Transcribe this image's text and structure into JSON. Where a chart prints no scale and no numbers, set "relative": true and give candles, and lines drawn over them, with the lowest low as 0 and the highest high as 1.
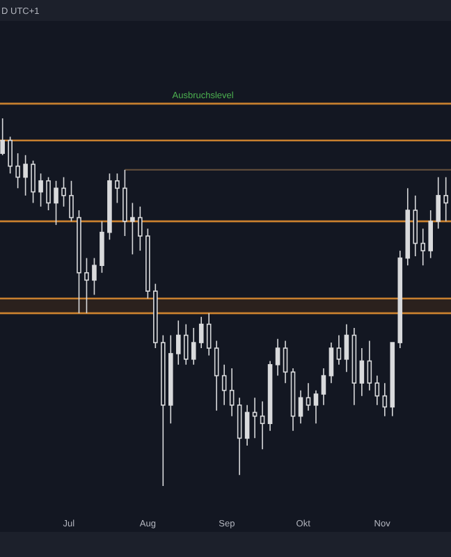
{
  "chart_data": {
    "type": "candlestick",
    "relative": true,
    "color": "#d9dadc",
    "annotations": [
      "D UTC+1"
    ],
    "xlim": [
      "--06-04",
      "--11-28"
    ],
    "xticks": [
      {
        "value": "--07-01",
        "label": "Jul"
      },
      {
        "value": "--08-01",
        "label": "Aug"
      },
      {
        "value": "--09-01",
        "label": "Sep"
      },
      {
        "value": "--10-01",
        "label": "Okt"
      },
      {
        "value": "--11-01",
        "label": "Nov"
      }
    ],
    "x": [
      "--06-05",
      "--06-08",
      "--06-11",
      "--06-14",
      "--06-17",
      "--06-20",
      "--06-23",
      "--06-26",
      "--06-29",
      "--07-02",
      "--07-05",
      "--07-08",
      "--07-11",
      "--07-14",
      "--07-17",
      "--07-20",
      "--07-23",
      "--07-26",
      "--07-29",
      "--08-01",
      "--08-04",
      "--08-07",
      "--08-10",
      "--08-13",
      "--08-16",
      "--08-19",
      "--08-22",
      "--08-25",
      "--08-28",
      "--08-31",
      "--09-03",
      "--09-06",
      "--09-09",
      "--09-12",
      "--09-15",
      "--09-18",
      "--09-21",
      "--09-24",
      "--09-27",
      "--09-30",
      "--10-03",
      "--10-06",
      "--10-09",
      "--10-12",
      "--10-15",
      "--10-18",
      "--10-21",
      "--10-24",
      "--10-27",
      "--10-30",
      "--11-02",
      "--11-05",
      "--11-08",
      "--11-11",
      "--11-14",
      "--11-17",
      "--11-20",
      "--11-23",
      "--11-26"
    ],
    "ohlc": [
      [
        0.905,
        1.0,
        0.9,
        0.94
      ],
      [
        0.94,
        0.95,
        0.85,
        0.87
      ],
      [
        0.87,
        0.905,
        0.81,
        0.84
      ],
      [
        0.84,
        0.9,
        0.79,
        0.875
      ],
      [
        0.875,
        0.885,
        0.77,
        0.8
      ],
      [
        0.8,
        0.85,
        0.76,
        0.83
      ],
      [
        0.83,
        0.84,
        0.75,
        0.77
      ],
      [
        0.77,
        0.83,
        0.71,
        0.81
      ],
      [
        0.81,
        0.84,
        0.76,
        0.79
      ],
      [
        0.79,
        0.83,
        0.72,
        0.73
      ],
      [
        0.73,
        0.75,
        0.47,
        0.58
      ],
      [
        0.58,
        0.62,
        0.47,
        0.56
      ],
      [
        0.56,
        0.62,
        0.52,
        0.6
      ],
      [
        0.6,
        0.72,
        0.58,
        0.69
      ],
      [
        0.69,
        0.85,
        0.67,
        0.83
      ],
      [
        0.83,
        0.85,
        0.77,
        0.81
      ],
      [
        0.81,
        0.86,
        0.68,
        0.72
      ],
      [
        0.72,
        0.77,
        0.63,
        0.73
      ],
      [
        0.73,
        0.76,
        0.64,
        0.68
      ],
      [
        0.68,
        0.7,
        0.51,
        0.53
      ],
      [
        0.53,
        0.55,
        0.375,
        0.39
      ],
      [
        0.39,
        0.41,
        0,
        0.22
      ],
      [
        0.22,
        0.41,
        0.17,
        0.36
      ],
      [
        0.36,
        0.45,
        0.33,
        0.41
      ],
      [
        0.41,
        0.44,
        0.33,
        0.345
      ],
      [
        0.345,
        0.43,
        0.33,
        0.39
      ],
      [
        0.39,
        0.46,
        0.375,
        0.44
      ],
      [
        0.44,
        0.47,
        0.355,
        0.375
      ],
      [
        0.375,
        0.395,
        0.205,
        0.3
      ],
      [
        0.3,
        0.33,
        0.22,
        0.26
      ],
      [
        0.26,
        0.32,
        0.19,
        0.22
      ],
      [
        0.22,
        0.24,
        0.03,
        0.13
      ],
      [
        0.13,
        0.22,
        0.11,
        0.2
      ],
      [
        0.2,
        0.24,
        0.13,
        0.19
      ],
      [
        0.19,
        0.23,
        0.1,
        0.17
      ],
      [
        0.17,
        0.34,
        0.15,
        0.33
      ],
      [
        0.33,
        0.4,
        0.3,
        0.375
      ],
      [
        0.375,
        0.395,
        0.28,
        0.31
      ],
      [
        0.31,
        0.32,
        0.15,
        0.19
      ],
      [
        0.19,
        0.26,
        0.17,
        0.24
      ],
      [
        0.24,
        0.28,
        0.205,
        0.22
      ],
      [
        0.22,
        0.26,
        0.17,
        0.25
      ],
      [
        0.25,
        0.32,
        0.22,
        0.3
      ],
      [
        0.3,
        0.39,
        0.28,
        0.375
      ],
      [
        0.375,
        0.41,
        0.33,
        0.345
      ],
      [
        0.345,
        0.44,
        0.31,
        0.41
      ],
      [
        0.41,
        0.43,
        0.22,
        0.28
      ],
      [
        0.28,
        0.375,
        0.245,
        0.34
      ],
      [
        0.34,
        0.395,
        0.26,
        0.28
      ],
      [
        0.28,
        0.3,
        0.22,
        0.245
      ],
      [
        0.245,
        0.28,
        0.19,
        0.215
      ],
      [
        0.215,
        0.39,
        0.19,
        0.39
      ],
      [
        0.39,
        0.64,
        0.375,
        0.62
      ],
      [
        0.62,
        0.81,
        0.6,
        0.75
      ],
      [
        0.75,
        0.79,
        0.625,
        0.66
      ],
      [
        0.66,
        0.7,
        0.6,
        0.64
      ],
      [
        0.64,
        0.75,
        0.62,
        0.72
      ],
      [
        0.72,
        0.84,
        0.7,
        0.79
      ],
      [
        0.79,
        0.84,
        0.72,
        0.77
      ]
    ],
    "series": [
      {
        "type": "line",
        "x": [
          "--07-23",
          "--11-28"
        ],
        "values": [
          0.86,
          0.86
        ],
        "color": "#5e4b3a"
      }
    ],
    "bands": [
      {
        "axis": "y",
        "from": 0.47,
        "to": 0.51,
        "color": "#2b211d"
      }
    ],
    "ref_lines": [
      {
        "axis": "y",
        "value": 1.04,
        "label": "Ausbruchslevel",
        "color": "#c8802f"
      },
      {
        "axis": "y",
        "value": 0.94,
        "color": "#c8802f"
      },
      {
        "axis": "y",
        "value": 0.72,
        "color": "#c8802f"
      },
      {
        "axis": "y",
        "value": 0.51,
        "color": "#c8802f"
      },
      {
        "axis": "y",
        "value": 0.47,
        "color": "#c8802f"
      }
    ]
  }
}
